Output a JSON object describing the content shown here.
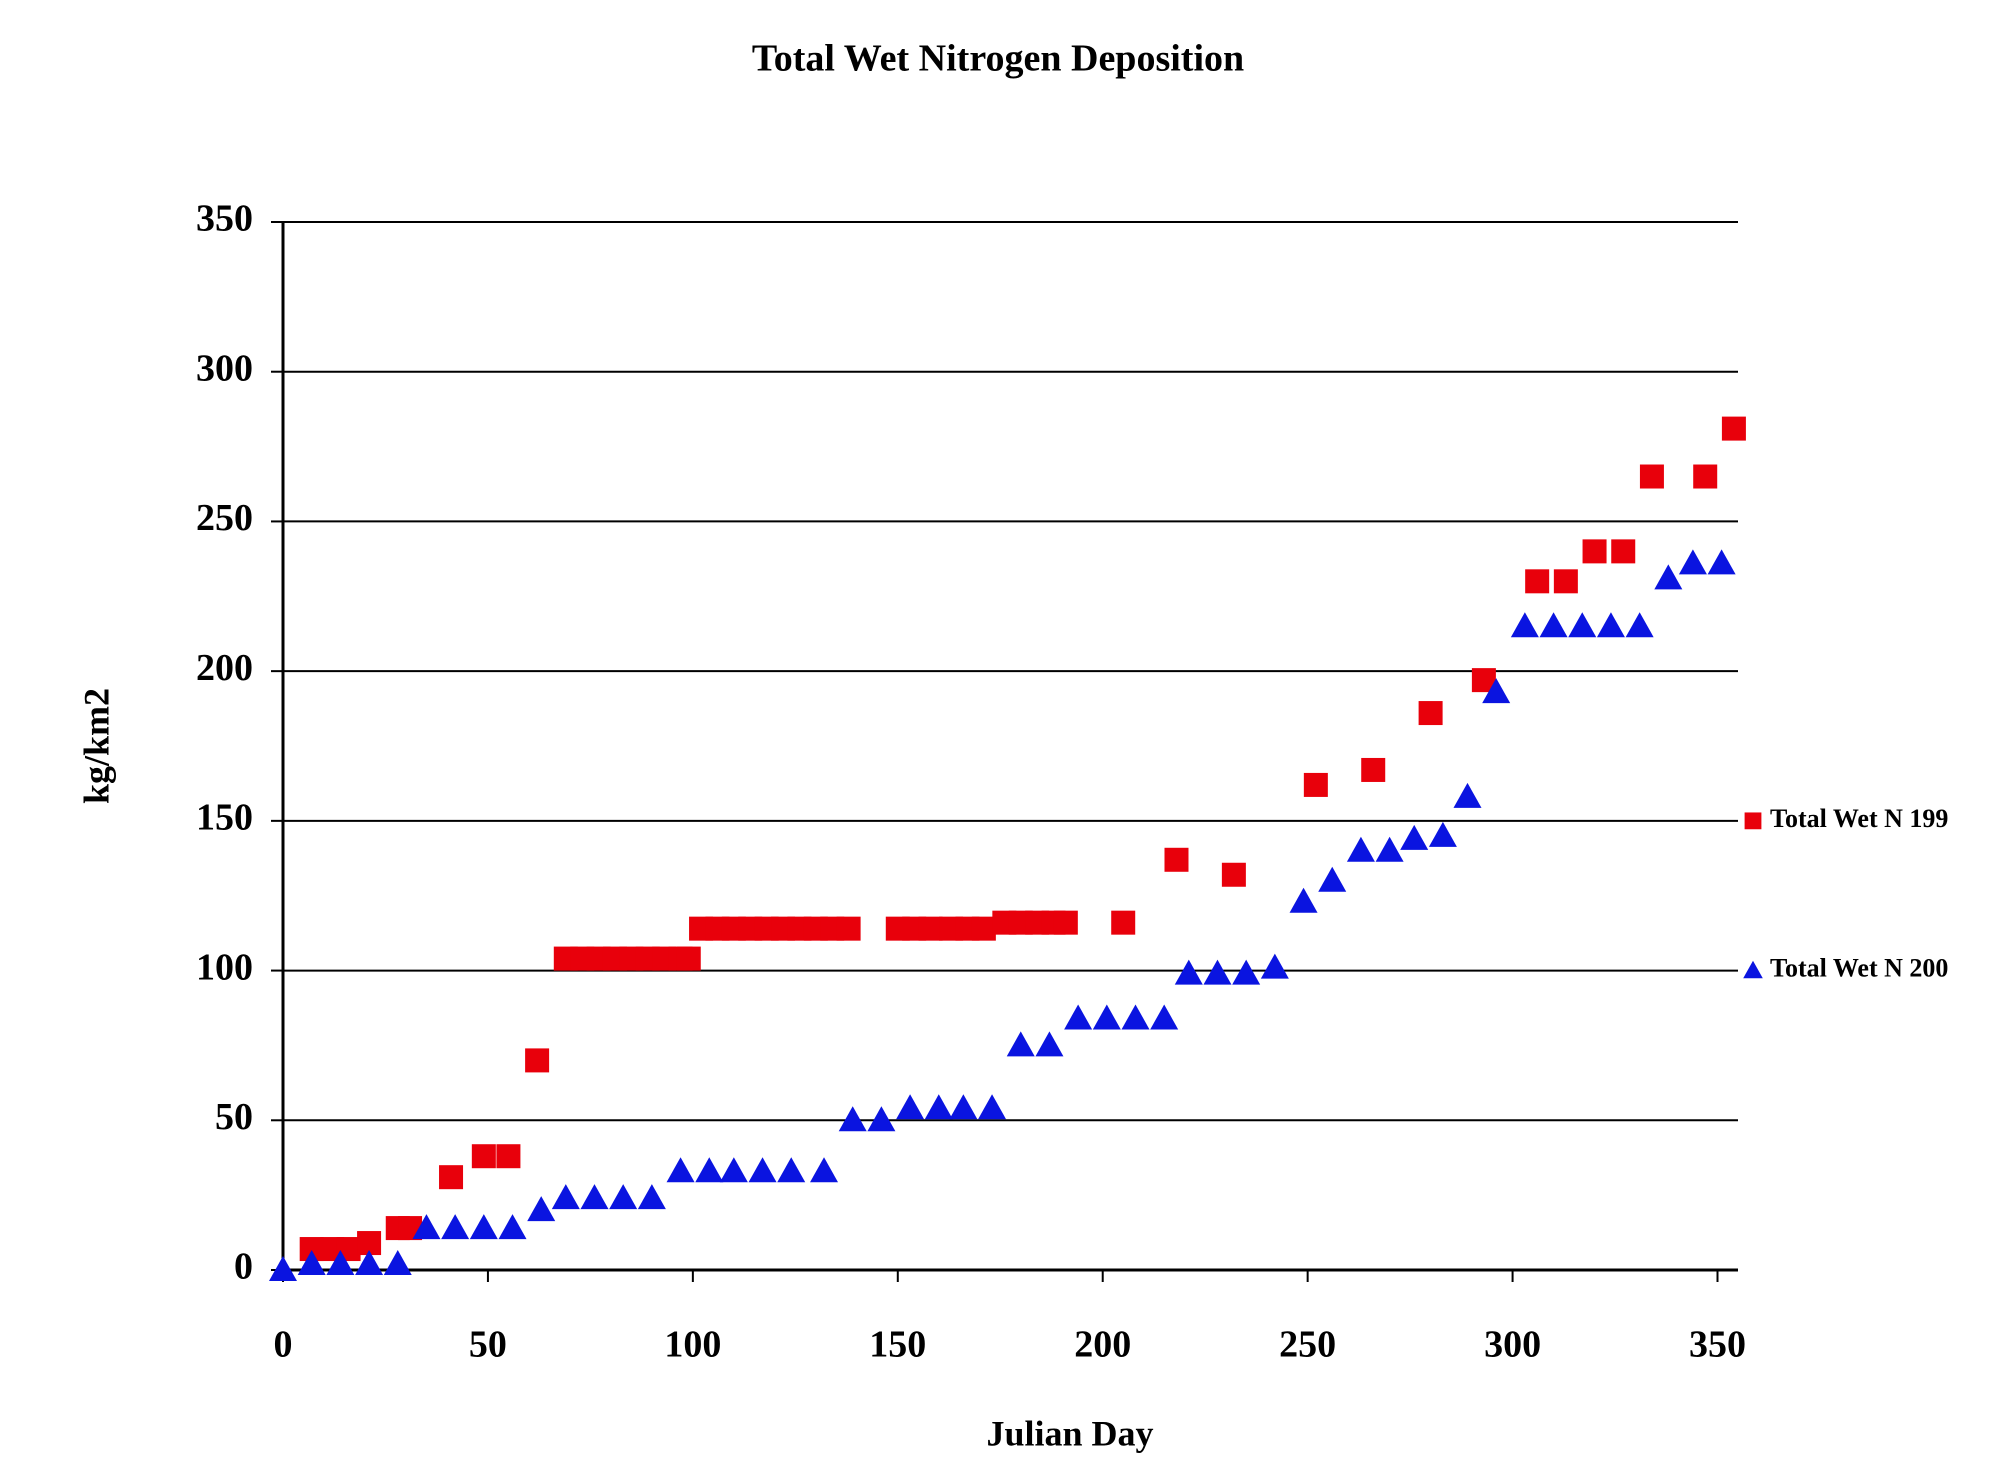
{
  "chart_data": {
    "type": "scatter",
    "title": "Total Wet Nitrogen Deposition",
    "x_label": "Julian Day",
    "y_label": "kg/km2",
    "xlim": [
      0,
      355
    ],
    "ylim": [
      0,
      350
    ],
    "xticks": [
      0,
      50,
      100,
      150,
      200,
      250,
      300,
      350
    ],
    "yticks": [
      0,
      50,
      100,
      150,
      200,
      250,
      300,
      350
    ],
    "grid": true,
    "legend": "right",
    "series": [
      {
        "name": "Total Wet N 199",
        "color": "#e8000b",
        "marker": "square",
        "x": [
          7,
          12,
          16,
          21,
          28,
          31,
          41,
          49,
          55,
          62,
          69,
          73,
          77,
          81,
          85,
          89,
          93,
          97,
          99,
          102,
          106,
          110,
          114,
          118,
          122,
          126,
          130,
          134,
          138,
          150,
          154,
          158,
          163,
          167,
          171,
          176,
          180,
          184,
          188,
          191,
          205,
          218,
          232,
          252,
          266,
          280,
          293,
          306,
          313,
          320,
          327,
          334,
          347,
          354
        ],
        "values": [
          7,
          7,
          7,
          9,
          14,
          14,
          31,
          38,
          38,
          70,
          104,
          104,
          104,
          104,
          104,
          104,
          104,
          104,
          104,
          114,
          114,
          114,
          114,
          114,
          114,
          114,
          114,
          114,
          114,
          114,
          114,
          114,
          114,
          114,
          114,
          116,
          116,
          116,
          116,
          116,
          116,
          137,
          132,
          162,
          167,
          186,
          197,
          230,
          230,
          240,
          240,
          265,
          265,
          281
        ]
      },
      {
        "name": "Total Wet N 200",
        "color": "#0a14e0",
        "marker": "triangle",
        "x": [
          0,
          7,
          14,
          21,
          28,
          35,
          42,
          49,
          56,
          63,
          69,
          76,
          83,
          90,
          97,
          104,
          110,
          117,
          124,
          132,
          139,
          146,
          153,
          160,
          166,
          173,
          180,
          187,
          194,
          201,
          208,
          215,
          221,
          228,
          235,
          242,
          249,
          256,
          263,
          270,
          276,
          283,
          289,
          296,
          303,
          310,
          317,
          324,
          331,
          338,
          344,
          351
        ],
        "values": [
          0,
          2,
          2,
          2,
          2,
          14,
          14,
          14,
          14,
          20,
          24,
          24,
          24,
          24,
          33,
          33,
          33,
          33,
          33,
          33,
          50,
          50,
          54,
          54,
          54,
          54,
          75,
          75,
          84,
          84,
          84,
          84,
          99,
          99,
          99,
          101,
          123,
          130,
          140,
          140,
          144,
          145,
          158,
          193,
          215,
          215,
          215,
          215,
          215,
          231,
          236,
          236
        ]
      }
    ]
  }
}
